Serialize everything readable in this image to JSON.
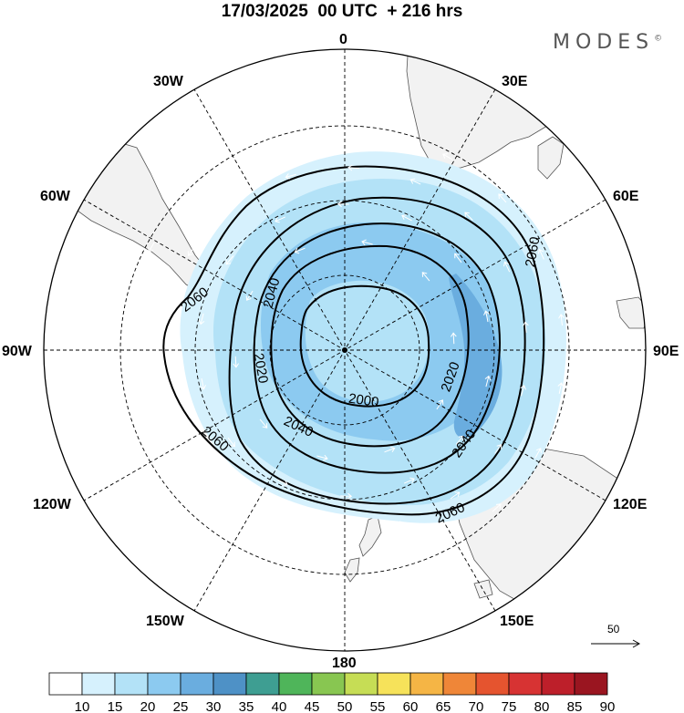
{
  "header": {
    "title": "17/03/2025  00 UTC  + 216 hrs",
    "brand": "MODES"
  },
  "map": {
    "projection": "south-polar-stereographic",
    "longitude_labels": [
      {
        "id": "lon-0",
        "text": "0"
      },
      {
        "id": "lon-30e",
        "text": "30E"
      },
      {
        "id": "lon-60e",
        "text": "60E"
      },
      {
        "id": "lon-90e",
        "text": "90E"
      },
      {
        "id": "lon-120e",
        "text": "120E"
      },
      {
        "id": "lon-150e",
        "text": "150E"
      },
      {
        "id": "lon-180",
        "text": "180"
      },
      {
        "id": "lon-150w",
        "text": "150W"
      },
      {
        "id": "lon-120w",
        "text": "120W"
      },
      {
        "id": "lon-90w",
        "text": "90W"
      },
      {
        "id": "lon-60w",
        "text": "60W"
      },
      {
        "id": "lon-30w",
        "text": "30W"
      }
    ],
    "contour_labels": [
      "2000",
      "2020",
      "2040",
      "2060"
    ],
    "contour_color": "#000000",
    "land_color": "#f2f2f2",
    "wind_reference": {
      "label": "50"
    }
  },
  "colorbar": {
    "tick_labels": [
      "10",
      "15",
      "20",
      "25",
      "30",
      "35",
      "40",
      "45",
      "50",
      "55",
      "60",
      "65",
      "70",
      "75",
      "80",
      "85",
      "90"
    ],
    "colors": [
      "#ffffff",
      "#d6f1fd",
      "#b3e2f7",
      "#8ccaf0",
      "#6aaddf",
      "#4e91c6",
      "#3e9e92",
      "#4fb55a",
      "#88c651",
      "#c6dd55",
      "#f6e25a",
      "#f5b545",
      "#ef8638",
      "#e5542f",
      "#d73333",
      "#bd1f2a",
      "#9a1520"
    ]
  }
}
